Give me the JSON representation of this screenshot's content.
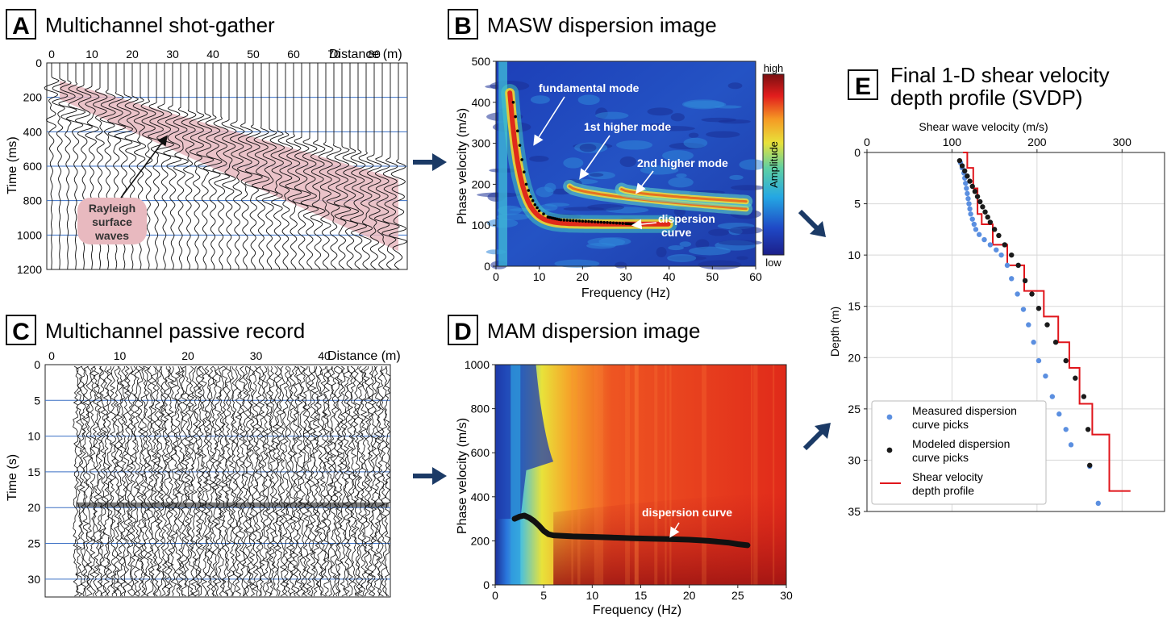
{
  "panels": {
    "A": {
      "letter": "A",
      "title": "Multichannel shot-gather",
      "xlabel": "Distance (m)",
      "ylabel": "Time (ms)",
      "x_ticks": [
        "0",
        "10",
        "20",
        "30",
        "40",
        "50",
        "60",
        "70",
        "80"
      ],
      "y_ticks": [
        "0",
        "200",
        "400",
        "600",
        "800",
        "1000",
        "1200"
      ],
      "annotation": [
        "Rayleigh",
        "surface",
        "waves"
      ]
    },
    "B": {
      "letter": "B",
      "title": "MASW dispersion image",
      "xlabel": "Frequency (Hz)",
      "ylabel": "Phase velocity (m/s)",
      "x_ticks": [
        "0",
        "10",
        "20",
        "30",
        "40",
        "50",
        "60"
      ],
      "y_ticks": [
        "0",
        "100",
        "200",
        "300",
        "400",
        "500"
      ],
      "colorbar": {
        "high": "high",
        "low": "low",
        "label": "Amplitude"
      },
      "annotations": {
        "fundamental": "fundamental mode",
        "first": "1st higher mode",
        "second": "2nd higher mode",
        "dispersion": [
          "dispersion",
          "curve"
        ]
      }
    },
    "C": {
      "letter": "C",
      "title": "Multichannel passive record",
      "xlabel": "Distance (m)",
      "ylabel": "Time (s)",
      "x_ticks": [
        "0",
        "10",
        "20",
        "30",
        "40"
      ],
      "y_ticks": [
        "0",
        "5",
        "10",
        "15",
        "20",
        "25",
        "30"
      ]
    },
    "D": {
      "letter": "D",
      "title": "MAM dispersion image",
      "xlabel": "Frequency (Hz)",
      "ylabel": "Phase velocity (m/s)",
      "x_ticks": [
        "0",
        "5",
        "10",
        "15",
        "20",
        "25",
        "30"
      ],
      "y_ticks": [
        "0",
        "200",
        "400",
        "600",
        "800",
        "1000"
      ],
      "annotation": "dispersion curve"
    },
    "E": {
      "letter": "E",
      "title": [
        "Final 1-D shear velocity",
        "depth profile (SVDP)"
      ]
    }
  },
  "chart_data": [
    {
      "type": "heatmap",
      "panel": "B",
      "title": "MASW dispersion image",
      "xlabel": "Frequency (Hz)",
      "ylabel": "Phase velocity (m/s)",
      "xlim": [
        0,
        60
      ],
      "ylim": [
        0,
        500
      ],
      "dispersion_curve": {
        "x": [
          4,
          5,
          6,
          7,
          8,
          9,
          10,
          12,
          15,
          20,
          25,
          30,
          32
        ],
        "y": [
          400,
          330,
          260,
          200,
          170,
          150,
          135,
          120,
          113,
          110,
          107,
          104,
          103
        ]
      }
    },
    {
      "type": "heatmap",
      "panel": "D",
      "title": "MAM dispersion image",
      "xlabel": "Frequency (Hz)",
      "ylabel": "Phase velocity (m/s)",
      "xlim": [
        0,
        30
      ],
      "ylim": [
        0,
        1000
      ],
      "dispersion_curve": {
        "x": [
          2,
          2.5,
          3,
          3.5,
          4,
          4.5,
          5,
          5.5,
          6,
          8,
          10,
          12,
          14,
          16,
          18,
          20,
          22,
          24,
          25,
          26
        ],
        "y": [
          300,
          310,
          315,
          305,
          290,
          270,
          245,
          230,
          225,
          220,
          218,
          215,
          212,
          210,
          208,
          205,
          200,
          192,
          185,
          180
        ]
      }
    },
    {
      "type": "scatter",
      "panel": "E",
      "xlabel": "Shear wave velocity (m/s)",
      "ylabel": "Depth (m)",
      "xlim": [
        0,
        350
      ],
      "ylim": [
        35,
        0
      ],
      "x_ticks": [
        0,
        100,
        200,
        300
      ],
      "y_ticks": [
        0,
        5,
        10,
        15,
        20,
        25,
        30,
        35
      ],
      "legend_position": "bottom-left",
      "series": [
        {
          "name": "Measured dispersion curve picks",
          "color": "#5b8fe0",
          "x": [
            110,
            112,
            114,
            115,
            116,
            117,
            118,
            119,
            120,
            121,
            122,
            124,
            126,
            128,
            132,
            138,
            145,
            152,
            158,
            165,
            170,
            177,
            184,
            190,
            196,
            202,
            210,
            218,
            226,
            234,
            240,
            262,
            272
          ],
          "y": [
            1.0,
            1.5,
            2.0,
            2.5,
            3.0,
            3.5,
            4.0,
            4.5,
            5.0,
            5.5,
            6.0,
            6.5,
            7.0,
            7.5,
            8.0,
            8.5,
            9.0,
            9.5,
            10.0,
            11.0,
            12.3,
            13.8,
            15.3,
            16.8,
            18.5,
            20.3,
            21.8,
            23.8,
            25.5,
            27.0,
            28.5,
            30.6,
            34.2
          ]
        },
        {
          "name": "Modeled dispersion curve picks",
          "color": "#1a1a1a",
          "x": [
            109,
            112,
            115,
            118,
            121,
            124,
            127,
            130,
            133,
            136,
            139,
            142,
            145,
            150,
            155,
            162,
            170,
            178,
            186,
            194,
            202,
            212,
            222,
            234,
            245,
            255,
            260,
            262
          ],
          "y": [
            0.8,
            1.3,
            1.8,
            2.3,
            2.8,
            3.3,
            3.8,
            4.3,
            4.8,
            5.3,
            5.8,
            6.3,
            6.8,
            7.5,
            8.1,
            9.0,
            10.0,
            11.0,
            12.5,
            13.8,
            15.2,
            16.8,
            18.5,
            20.3,
            22.0,
            23.8,
            27.0,
            30.5
          ]
        },
        {
          "name": "Shear velocity depth profile",
          "color": "#e0151b",
          "style": "step",
          "x": [
            113,
            118,
            118,
            125,
            125,
            130,
            130,
            135,
            135,
            148,
            148,
            165,
            165,
            185,
            185,
            208,
            208,
            225,
            225,
            238,
            238,
            250,
            250,
            265,
            265,
            285,
            285,
            300,
            300,
            310
          ],
          "y": [
            0,
            0,
            1.5,
            1.5,
            3.5,
            3.5,
            6.0,
            6.0,
            7.0,
            7.0,
            9.0,
            9.0,
            11.0,
            11.0,
            13.5,
            13.5,
            16.0,
            16.0,
            18.5,
            18.5,
            21.0,
            21.0,
            24.5,
            24.5,
            27.5,
            27.5,
            33.0,
            33.0,
            33.0,
            33.0
          ]
        }
      ]
    }
  ]
}
